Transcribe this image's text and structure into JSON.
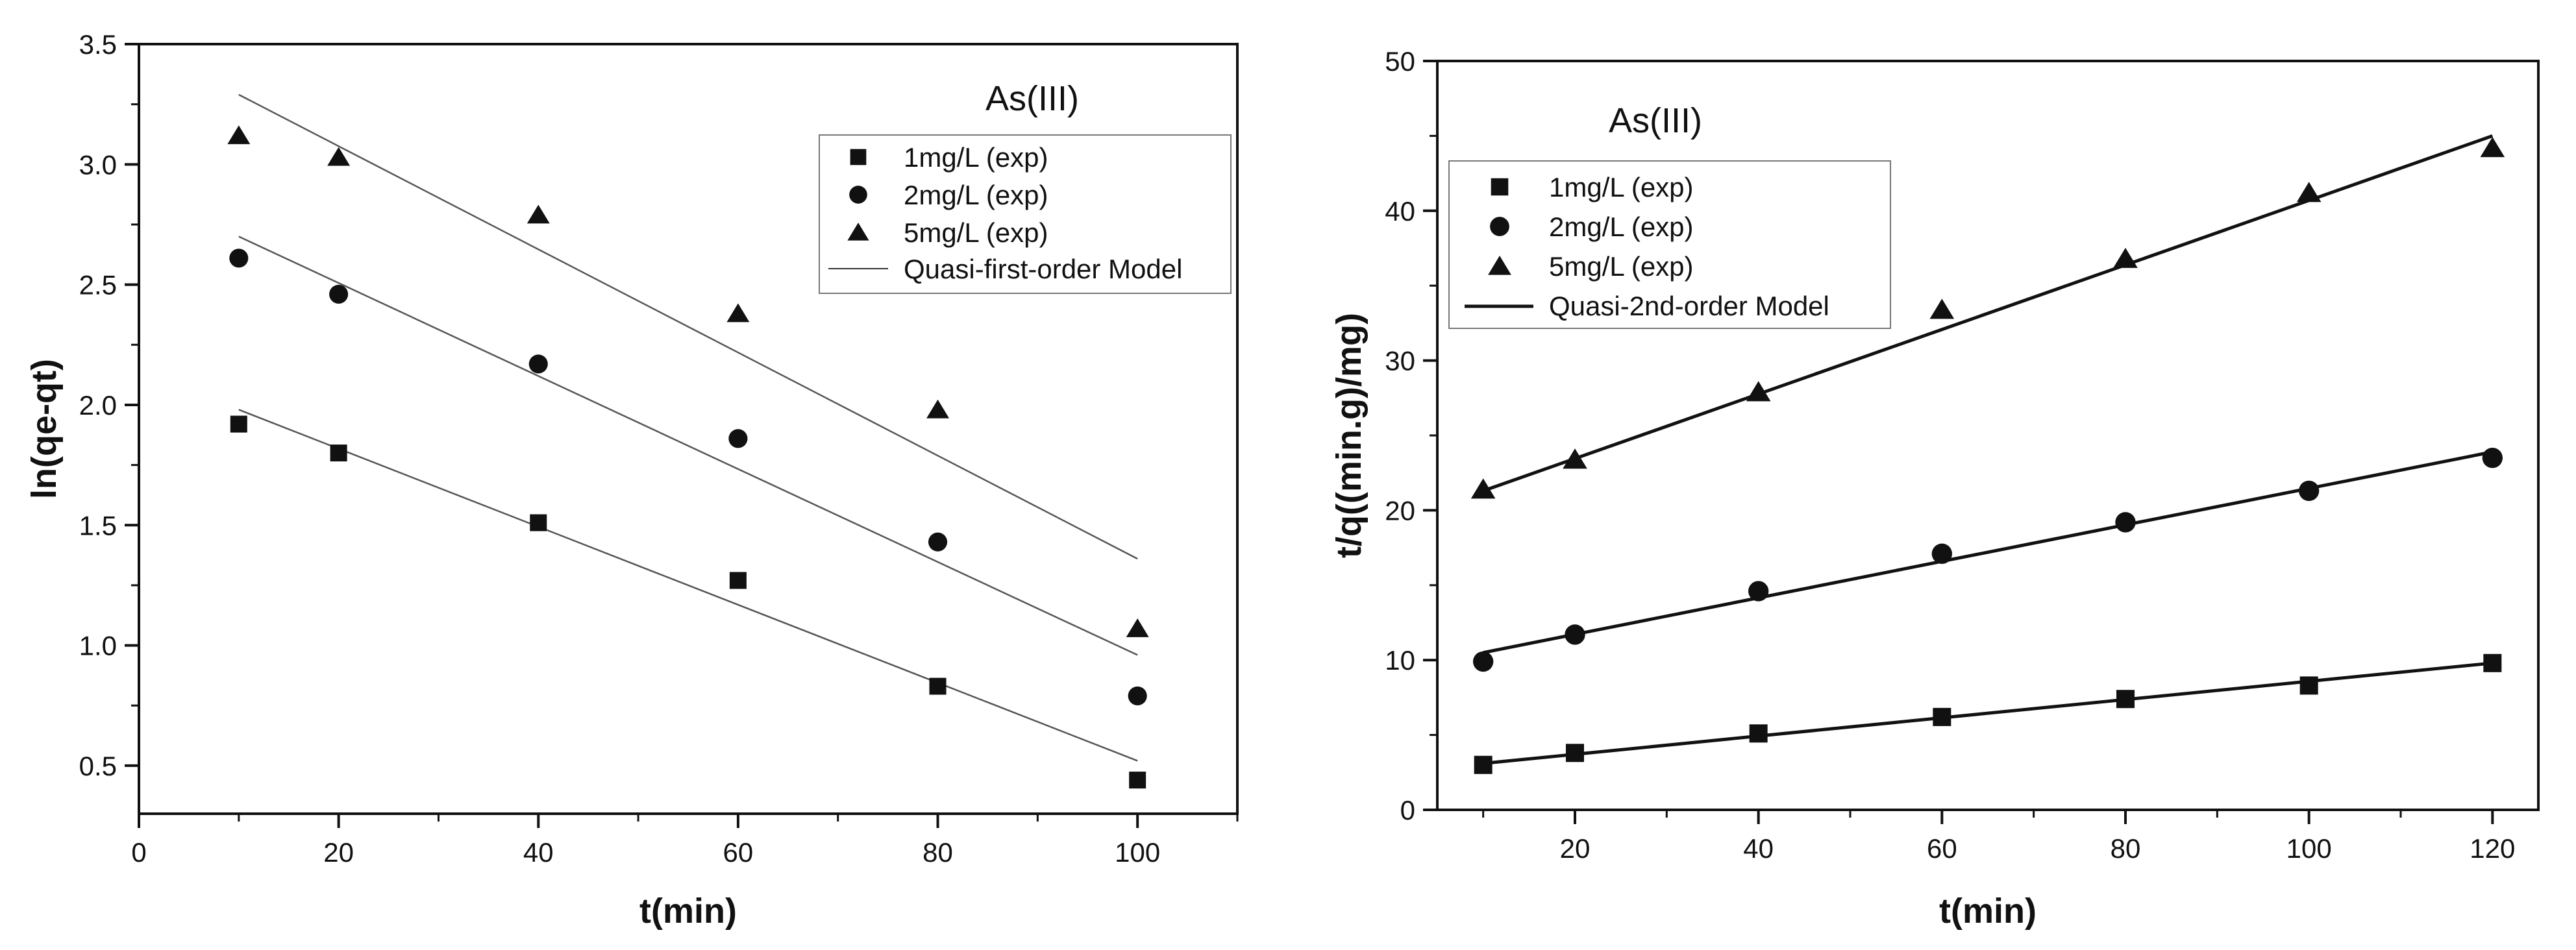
{
  "chart_data": [
    {
      "type": "scatter",
      "subtitle": "As(III)",
      "xlabel": "t(min)",
      "ylabel": "ln(qe-qt)",
      "xlim": [
        0,
        110
      ],
      "ylim": [
        0.3,
        3.5
      ],
      "xticks": [
        "0",
        "20",
        "40",
        "60",
        "80",
        "100"
      ],
      "yticks": [
        "0.5",
        "1.0",
        "1.5",
        "2.0",
        "2.5",
        "3.0",
        "3.5"
      ],
      "series": [
        {
          "name": "1mg/L (exp)",
          "marker": "square",
          "x": [
            10,
            20,
            40,
            60,
            80,
            100
          ],
          "y": [
            1.92,
            1.8,
            1.51,
            1.27,
            0.83,
            0.44
          ]
        },
        {
          "name": "2mg/L (exp)",
          "marker": "circle",
          "x": [
            10,
            20,
            40,
            60,
            80,
            100
          ],
          "y": [
            2.61,
            2.46,
            2.17,
            1.86,
            1.43,
            0.79
          ]
        },
        {
          "name": "5mg/L (exp)",
          "marker": "triangle",
          "x": [
            10,
            20,
            40,
            60,
            80,
            100
          ],
          "y": [
            3.12,
            3.03,
            2.79,
            2.38,
            1.98,
            1.07
          ]
        }
      ],
      "fit_name": "Quasi-first-order Model",
      "fit_lines": [
        {
          "x": [
            10,
            100
          ],
          "y": [
            1.98,
            0.52
          ]
        },
        {
          "x": [
            10,
            100
          ],
          "y": [
            2.7,
            0.96
          ]
        },
        {
          "x": [
            10,
            100
          ],
          "y": [
            3.29,
            1.36
          ]
        }
      ]
    },
    {
      "type": "scatter",
      "subtitle": "As(III)",
      "xlabel": "t(min)",
      "ylabel": "t/q((min.g)/mg)",
      "xlim": [
        5,
        125
      ],
      "ylim": [
        0,
        50
      ],
      "xticks": [
        "20",
        "40",
        "60",
        "80",
        "100",
        "120"
      ],
      "yticks": [
        "0",
        "10",
        "20",
        "30",
        "40",
        "50"
      ],
      "series": [
        {
          "name": "1mg/L (exp)",
          "marker": "square",
          "x": [
            10,
            20,
            40,
            60,
            80,
            100,
            120
          ],
          "y": [
            3.0,
            3.8,
            5.1,
            6.2,
            7.4,
            8.3,
            9.8
          ]
        },
        {
          "name": "2mg/L (exp)",
          "marker": "circle",
          "x": [
            10,
            20,
            40,
            60,
            80,
            100,
            120
          ],
          "y": [
            9.9,
            11.7,
            14.6,
            17.1,
            19.2,
            21.3,
            23.5
          ]
        },
        {
          "name": "5mg/L (exp)",
          "marker": "triangle",
          "x": [
            10,
            20,
            40,
            60,
            80,
            100,
            120
          ],
          "y": [
            21.4,
            23.4,
            27.9,
            33.4,
            36.8,
            41.2,
            44.2
          ]
        }
      ],
      "fit_name": "Quasi-2nd-order Model",
      "fit_lines": [
        {
          "x": [
            10,
            120
          ],
          "y": [
            3.1,
            9.8
          ]
        },
        {
          "x": [
            10,
            120
          ],
          "y": [
            10.5,
            23.9
          ]
        },
        {
          "x": [
            10,
            120
          ],
          "y": [
            21.3,
            45.0
          ]
        }
      ]
    }
  ]
}
